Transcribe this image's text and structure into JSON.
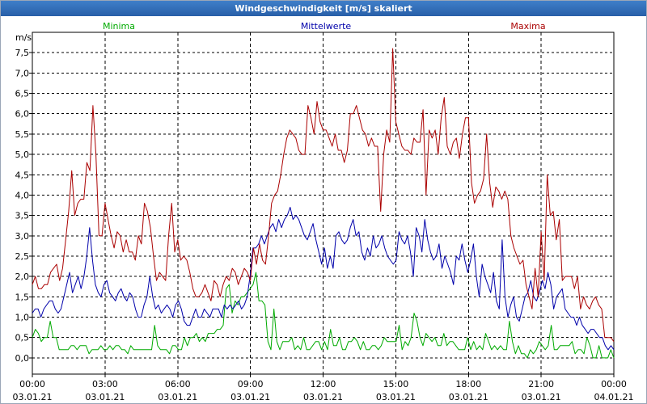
{
  "window": {
    "title": "Windgeschwindigkeit [m/s] skaliert"
  },
  "chart_data": {
    "type": "line",
    "unit_label": "m/s",
    "ylim": [
      -0.4,
      8.0
    ],
    "yticks": [
      "0,0",
      "0,5",
      "1,0",
      "1,5",
      "2,0",
      "2,5",
      "3,0",
      "3,5",
      "4,0",
      "4,5",
      "5,0",
      "5,5",
      "6,0",
      "6,5",
      "7,0",
      "7,5"
    ],
    "xlim": [
      0,
      24
    ],
    "xticks": [
      {
        "time": "00:00",
        "date": "03.01.21"
      },
      {
        "time": "03:00",
        "date": "03.01.21"
      },
      {
        "time": "06:00",
        "date": "03.01.21"
      },
      {
        "time": "09:00",
        "date": "03.01.21"
      },
      {
        "time": "12:00",
        "date": "03.01.21"
      },
      {
        "time": "15:00",
        "date": "03.01.21"
      },
      {
        "time": "18:00",
        "date": "03.01.21"
      },
      {
        "time": "21:00",
        "date": "03.01.21"
      },
      {
        "time": "00:00",
        "date": "04.01.21"
      }
    ],
    "grid": true,
    "series": [
      {
        "name": "Minima",
        "color": "#00aa00",
        "values": [
          0.5,
          0.7,
          0.6,
          0.4,
          0.5,
          0.5,
          0.9,
          0.5,
          0.5,
          0.2,
          0.2,
          0.2,
          0.2,
          0.3,
          0.3,
          0.2,
          0.3,
          0.3,
          0.3,
          0.1,
          0.2,
          0.2,
          0.2,
          0.3,
          0.2,
          0.2,
          0.3,
          0.2,
          0.3,
          0.3,
          0.2,
          0.2,
          0.1,
          0.3,
          0.2,
          0.2,
          0.2,
          0.2,
          0.2,
          0.2,
          0.2,
          0.8,
          0.3,
          0.2,
          0.2,
          0.2,
          0.1,
          0.3,
          0.3,
          0.2,
          0.2,
          0.5,
          0.3,
          0.5,
          0.5,
          0.6,
          0.4,
          0.5,
          0.4,
          0.6,
          0.6,
          0.6,
          0.7,
          0.7,
          0.8,
          1.7,
          1.8,
          1.1,
          1.4,
          1.3,
          1.5,
          1.5,
          1.6,
          1.7,
          1.8,
          2.1,
          1.4,
          1.4,
          1.3,
          0.4,
          0.2,
          1.2,
          0.4,
          0.2,
          0.4,
          0.4,
          0.4,
          0.5,
          0.2,
          0.3,
          0.2,
          0.5,
          0.2,
          0.2,
          0.3,
          0.4,
          0.4,
          0.2,
          0.4,
          0.2,
          0.7,
          0.3,
          0.3,
          0.5,
          0.2,
          0.2,
          0.4,
          0.4,
          0.5,
          0.4,
          0.2,
          0.4,
          0.2,
          0.2,
          0.3,
          0.3,
          0.2,
          0.3,
          0.5,
          0.4,
          0.4,
          0.4,
          0.4,
          0.8,
          0.2,
          0.4,
          0.3,
          0.5,
          1.1,
          0.9,
          0.5,
          0.3,
          0.6,
          0.5,
          0.4,
          0.5,
          0.3,
          0.3,
          0.6,
          0.3,
          0.4,
          0.4,
          0.3,
          0.2,
          0.2,
          0.2,
          0.5,
          0.2,
          0.4,
          0.2,
          0.3,
          0.2,
          0.6,
          0.4,
          0.2,
          0.3,
          0.2,
          0.3,
          0.2,
          0.2,
          0.9,
          0.4,
          0.1,
          0.3,
          0.1,
          0.1,
          0.0,
          0.2,
          0.1,
          0.2,
          0.4,
          0.3,
          0.2,
          0.3,
          0.8,
          0.2,
          0.2,
          0.3,
          0.3,
          0.3,
          0.3,
          0.4,
          0.1,
          0.2,
          0.2,
          0.1,
          0.5,
          0.3,
          0.0,
          0.0,
          0.3,
          0.0,
          0.0,
          0.0,
          0.2,
          0.0
        ]
      },
      {
        "name": "Mittelwerte",
        "color": "#0000aa",
        "values": [
          1.1,
          1.2,
          1.2,
          1.0,
          1.2,
          1.3,
          1.4,
          1.4,
          1.2,
          1.1,
          1.2,
          1.5,
          1.8,
          2.1,
          1.6,
          1.8,
          2.0,
          1.7,
          2.0,
          2.5,
          3.2,
          2.4,
          1.8,
          1.6,
          1.5,
          1.8,
          1.9,
          1.6,
          1.5,
          1.4,
          1.6,
          1.7,
          1.5,
          1.4,
          1.6,
          1.5,
          1.2,
          1.0,
          1.0,
          1.3,
          1.5,
          2.0,
          1.5,
          1.2,
          1.3,
          1.1,
          1.2,
          1.3,
          1.2,
          1.0,
          1.3,
          1.4,
          1.2,
          0.9,
          0.8,
          0.8,
          1.0,
          1.2,
          1.0,
          1.0,
          1.2,
          1.1,
          1.0,
          1.2,
          1.2,
          1.2,
          1.0,
          1.3,
          1.2,
          1.3,
          1.2,
          1.3,
          1.4,
          1.2,
          1.3,
          1.5,
          2.0,
          2.7,
          2.7,
          2.8,
          3.0,
          2.8,
          3.0,
          3.2,
          3.3,
          3.1,
          3.4,
          3.2,
          3.4,
          3.5,
          3.7,
          3.4,
          3.5,
          3.4,
          3.2,
          3.0,
          2.9,
          3.1,
          3.3,
          2.9,
          2.6,
          2.3,
          2.7,
          2.2,
          2.5,
          2.2,
          3.0,
          3.1,
          2.9,
          2.8,
          2.9,
          3.2,
          3.4,
          3.0,
          3.1,
          2.6,
          2.4,
          2.7,
          2.5,
          3.0,
          2.7,
          2.8,
          3.0,
          2.7,
          2.5,
          2.4,
          2.3,
          2.4,
          3.1,
          2.9,
          2.8,
          3.0,
          2.6,
          2.0,
          3.2,
          3.0,
          2.6,
          3.4,
          2.9,
          2.6,
          2.4,
          2.5,
          2.8,
          2.2,
          2.5,
          2.3,
          2.1,
          1.8,
          2.5,
          2.4,
          2.8,
          2.4,
          2.1,
          2.4,
          2.8,
          2.0,
          1.5,
          2.3,
          2.0,
          1.8,
          1.6,
          2.1,
          1.4,
          1.2,
          2.9,
          1.5,
          1.0,
          1.3,
          1.5,
          1.0,
          0.9,
          1.2,
          1.5,
          1.6,
          1.9,
          1.5,
          1.4,
          1.6,
          1.9,
          1.7,
          2.1,
          1.8,
          1.2,
          1.5,
          1.6,
          1.7,
          1.2,
          1.1,
          1.0,
          1.0,
          0.8,
          1.0,
          0.8,
          0.7,
          0.6,
          0.7,
          0.7,
          0.6,
          0.5,
          0.5,
          0.3,
          0.2,
          0.3,
          0.2
        ]
      },
      {
        "name": "Maxima",
        "color": "#aa0000",
        "values": [
          1.8,
          2.0,
          1.7,
          1.7,
          1.8,
          1.8,
          2.1,
          2.2,
          2.3,
          1.9,
          2.2,
          2.9,
          3.6,
          4.6,
          3.5,
          3.8,
          3.9,
          3.9,
          4.8,
          4.6,
          6.2,
          5.0,
          3.0,
          3.0,
          3.8,
          3.4,
          3.0,
          2.7,
          3.1,
          3.0,
          2.6,
          2.9,
          2.6,
          2.6,
          2.4,
          3.0,
          2.8,
          3.8,
          3.6,
          3.2,
          2.5,
          1.9,
          2.1,
          2.0,
          1.9,
          3.0,
          3.8,
          2.6,
          2.9,
          2.4,
          2.5,
          2.4,
          2.1,
          1.7,
          1.5,
          1.5,
          1.6,
          1.8,
          1.6,
          1.4,
          1.9,
          1.8,
          1.5,
          1.8,
          2.0,
          1.9,
          2.2,
          2.1,
          1.8,
          2.0,
          2.2,
          2.1,
          1.9,
          2.7,
          2.3,
          2.8,
          2.4,
          2.3,
          3.0,
          3.8,
          4.0,
          4.1,
          4.5,
          5.0,
          5.4,
          5.6,
          5.5,
          5.4,
          5.1,
          5.0,
          5.0,
          6.2,
          5.9,
          5.5,
          6.3,
          5.8,
          5.6,
          5.6,
          5.4,
          5.2,
          5.5,
          5.1,
          5.1,
          4.8,
          5.1,
          6.0,
          6.0,
          6.2,
          5.9,
          5.6,
          5.5,
          5.2,
          5.4,
          5.2,
          5.2,
          3.6,
          5.0,
          5.6,
          5.3,
          7.6,
          5.8,
          5.5,
          5.2,
          5.1,
          5.1,
          5.0,
          5.4,
          5.3,
          5.3,
          6.1,
          4.0,
          5.6,
          5.4,
          5.6,
          5.0,
          5.9,
          6.4,
          5.2,
          5.0,
          5.3,
          5.4,
          4.9,
          5.5,
          5.9,
          5.9,
          4.3,
          3.8,
          4.0,
          4.1,
          4.4,
          5.5,
          4.3,
          3.7,
          4.2,
          4.1,
          3.9,
          4.1,
          3.9,
          3.0,
          2.7,
          2.5,
          2.3,
          2.4,
          1.8,
          1.5,
          1.2,
          2.2,
          1.5,
          3.1,
          1.9,
          4.5,
          3.5,
          3.6,
          2.9,
          3.4,
          1.9,
          2.0,
          2.0,
          2.0,
          1.7,
          2.0,
          1.2,
          1.5,
          1.3,
          1.2,
          1.4,
          1.5,
          1.3,
          1.2,
          0.5,
          0.5,
          0.5,
          0.4
        ]
      }
    ]
  }
}
